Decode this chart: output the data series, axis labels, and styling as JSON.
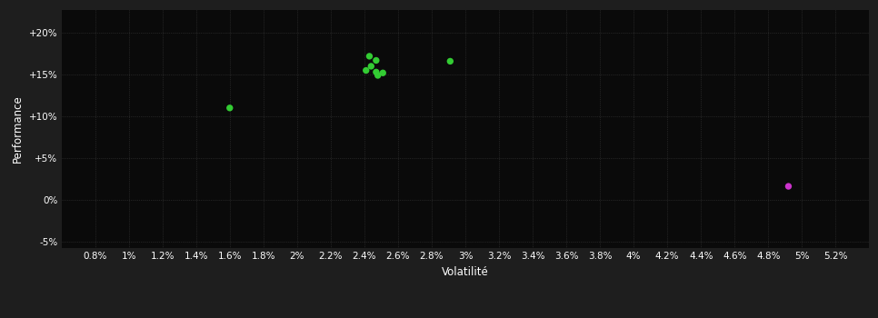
{
  "background_color": "#1e1e1e",
  "plot_bg_color": "#0a0a0a",
  "grid_color": "#3a3a3a",
  "text_color": "#ffffff",
  "xlabel": "Volatilité",
  "ylabel": "Performance",
  "xlim": [
    0.006,
    0.054
  ],
  "ylim": [
    -0.058,
    0.228
  ],
  "xticks": [
    0.008,
    0.01,
    0.012,
    0.014,
    0.016,
    0.018,
    0.02,
    0.022,
    0.024,
    0.026,
    0.028,
    0.03,
    0.032,
    0.034,
    0.036,
    0.038,
    0.04,
    0.042,
    0.044,
    0.046,
    0.048,
    0.05,
    0.052
  ],
  "xtick_labels": [
    "0.8%",
    "1%",
    "1.2%",
    "1.4%",
    "1.6%",
    "1.8%",
    "2%",
    "2.2%",
    "2.4%",
    "2.6%",
    "2.8%",
    "3%",
    "3.2%",
    "3.4%",
    "3.6%",
    "3.8%",
    "4%",
    "4.2%",
    "4.4%",
    "4.6%",
    "4.8%",
    "5%",
    "5.2%"
  ],
  "yticks": [
    -0.05,
    0.0,
    0.05,
    0.1,
    0.15,
    0.2
  ],
  "ytick_labels": [
    "-5%",
    "0%",
    "+5%",
    "+10%",
    "+15%",
    "+20%"
  ],
  "green_points": [
    [
      0.0243,
      0.172
    ],
    [
      0.0247,
      0.167
    ],
    [
      0.0244,
      0.16
    ],
    [
      0.0241,
      0.155
    ],
    [
      0.0247,
      0.153
    ],
    [
      0.0251,
      0.152
    ],
    [
      0.0248,
      0.149
    ],
    [
      0.016,
      0.11
    ],
    [
      0.0291,
      0.166
    ]
  ],
  "green_color": "#33cc33",
  "magenta_points": [
    [
      0.0492,
      0.016
    ]
  ],
  "magenta_color": "#cc33cc",
  "marker_size": 28
}
